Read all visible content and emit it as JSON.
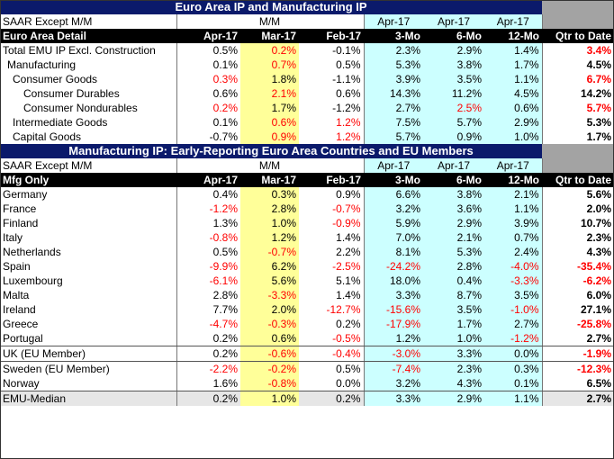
{
  "section1": {
    "title": "Euro Area IP and Manufacturing IP",
    "sub": [
      "SAAR Except M/M",
      "",
      "M/M",
      "",
      "Apr-17",
      "Apr-17",
      "Apr-17",
      ""
    ],
    "head": [
      "Euro Area Detail",
      "Apr-17",
      "Mar-17",
      "Feb-17",
      "3-Mo",
      "6-Mo",
      "12-Mo",
      "Qtr to Date"
    ],
    "rows": [
      {
        "indent": 0,
        "cells": [
          "Total EMU IP Excl. Construction",
          "0.5%",
          "0.2%",
          "-0.1%",
          "2.3%",
          "2.9%",
          "1.4%",
          "3.4%"
        ],
        "neg": [
          2,
          7
        ]
      },
      {
        "indent": 1,
        "cells": [
          "Manufacturing",
          "0.1%",
          "0.7%",
          "0.5%",
          "5.3%",
          "3.8%",
          "1.7%",
          "4.5%"
        ],
        "neg": [
          2
        ]
      },
      {
        "indent": 2,
        "cells": [
          "Consumer Goods",
          "0.3%",
          "1.8%",
          "-1.1%",
          "3.9%",
          "3.5%",
          "1.1%",
          "6.7%"
        ],
        "neg": [
          1,
          7
        ]
      },
      {
        "indent": 3,
        "cells": [
          "Consumer Durables",
          "0.6%",
          "2.1%",
          "0.6%",
          "14.3%",
          "11.2%",
          "4.5%",
          "14.2%"
        ],
        "neg": [
          2
        ]
      },
      {
        "indent": 3,
        "cells": [
          "Consumer Nondurables",
          "0.2%",
          "1.7%",
          "-1.2%",
          "2.7%",
          "2.5%",
          "0.6%",
          "5.7%"
        ],
        "neg": [
          1,
          5,
          7
        ]
      },
      {
        "indent": 2,
        "cells": [
          "Intermediate Goods",
          "0.1%",
          "0.6%",
          "1.2%",
          "7.5%",
          "5.7%",
          "2.9%",
          "5.3%"
        ],
        "neg": [
          2,
          3
        ]
      },
      {
        "indent": 2,
        "cells": [
          "Capital Goods",
          "-0.7%",
          "0.9%",
          "1.2%",
          "5.7%",
          "0.9%",
          "1.0%",
          "1.7%"
        ],
        "neg": [
          2,
          3
        ]
      }
    ]
  },
  "section2": {
    "title": "Manufacturing IP: Early-Reporting Euro Area Countries and EU Members",
    "sub": [
      "SAAR Except M/M",
      "",
      "M/M",
      "",
      "Apr-17",
      "Apr-17",
      "Apr-17",
      ""
    ],
    "head": [
      "Mfg Only",
      "Apr-17",
      "Mar-17",
      "Feb-17",
      "3-Mo",
      "6-Mo",
      "12-Mo",
      "Qtr to Date"
    ],
    "rows": [
      {
        "cells": [
          "Germany",
          "0.4%",
          "0.3%",
          "0.9%",
          "6.6%",
          "3.8%",
          "2.1%",
          "5.6%"
        ],
        "neg": []
      },
      {
        "cells": [
          "France",
          "-1.2%",
          "2.8%",
          "-0.7%",
          "3.2%",
          "3.6%",
          "1.1%",
          "2.0%"
        ],
        "neg": [
          1,
          3
        ]
      },
      {
        "cells": [
          "Finland",
          "1.3%",
          "1.0%",
          "-0.9%",
          "5.9%",
          "2.9%",
          "3.9%",
          "10.7%"
        ],
        "neg": [
          3
        ]
      },
      {
        "cells": [
          "Italy",
          "-0.8%",
          "1.2%",
          "1.4%",
          "7.0%",
          "2.1%",
          "0.7%",
          "2.3%"
        ],
        "neg": [
          1
        ]
      },
      {
        "cells": [
          "Netherlands",
          "0.5%",
          "-0.7%",
          "2.2%",
          "8.1%",
          "5.3%",
          "2.4%",
          "4.3%"
        ],
        "neg": [
          2
        ]
      },
      {
        "cells": [
          "Spain",
          "-9.9%",
          "6.2%",
          "-2.5%",
          "-24.2%",
          "2.8%",
          "-4.0%",
          "-35.4%"
        ],
        "neg": [
          1,
          3,
          4,
          6,
          7
        ]
      },
      {
        "cells": [
          "Luxembourg",
          "-6.1%",
          "5.6%",
          "5.1%",
          "18.0%",
          "0.4%",
          "-3.3%",
          "-6.2%"
        ],
        "neg": [
          1,
          6,
          7
        ]
      },
      {
        "cells": [
          "Malta",
          "2.8%",
          "-3.3%",
          "1.4%",
          "3.3%",
          "8.7%",
          "3.5%",
          "6.0%"
        ],
        "neg": [
          2
        ]
      },
      {
        "cells": [
          "Ireland",
          "7.7%",
          "2.0%",
          "-12.7%",
          "-15.6%",
          "3.5%",
          "-1.0%",
          "27.1%"
        ],
        "neg": [
          3,
          4,
          6
        ]
      },
      {
        "cells": [
          "Greece",
          "-4.7%",
          "-0.3%",
          "0.2%",
          "-17.9%",
          "1.7%",
          "2.7%",
          "-25.8%"
        ],
        "neg": [
          1,
          2,
          4,
          7
        ]
      },
      {
        "cells": [
          "Portugal",
          "0.2%",
          "0.6%",
          "-0.5%",
          "1.2%",
          "1.0%",
          "-1.2%",
          "2.7%"
        ],
        "neg": [
          3,
          6
        ]
      },
      {
        "cells": [
          "UK (EU Member)",
          "0.2%",
          "-0.6%",
          "-0.4%",
          "-3.0%",
          "3.3%",
          "0.0%",
          "-1.9%"
        ],
        "neg": [
          2,
          3,
          4,
          7
        ]
      },
      {
        "cells": [
          "Sweden (EU Member)",
          "-2.2%",
          "-0.2%",
          "0.5%",
          "-7.4%",
          "2.3%",
          "0.3%",
          "-12.3%"
        ],
        "neg": [
          1,
          2,
          4,
          7
        ]
      },
      {
        "cells": [
          "Norway",
          "1.6%",
          "-0.8%",
          "0.0%",
          "3.2%",
          "4.3%",
          "0.1%",
          "6.5%"
        ],
        "neg": [
          2
        ]
      }
    ],
    "median": {
      "cells": [
        "EMU-Median",
        "0.2%",
        "1.0%",
        "0.2%",
        "3.3%",
        "2.9%",
        "1.1%",
        "2.7%"
      ]
    }
  },
  "colors": {
    "banner": "#0b1a6b",
    "cyan": "#ccffff",
    "yellow": "#ffff99",
    "gray": "#a3a3a3",
    "negative": "#ff0000"
  }
}
